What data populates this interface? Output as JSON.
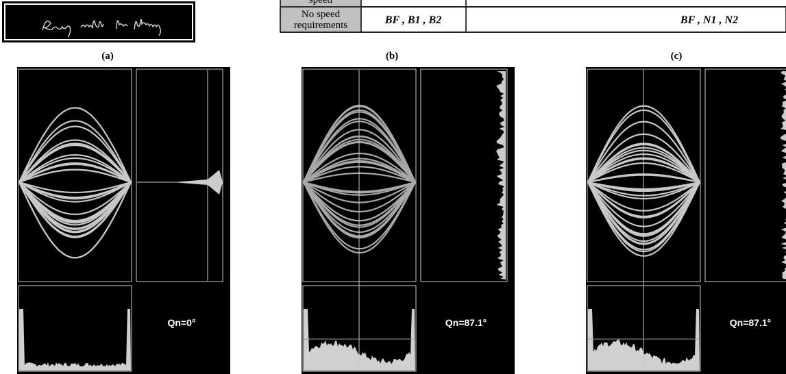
{
  "table": {
    "rows": [
      [
        "speed"
      ],
      [
        "No speed requirements",
        "BF , B1 , B2",
        "BF , N1 , N2"
      ]
    ]
  },
  "panels": [
    {
      "label": "(a)",
      "annotation": "Qn=0°"
    },
    {
      "label": "(b)",
      "annotation": "Qn=87.1°"
    },
    {
      "label": "(c)",
      "annotation": "Qn=87.1°"
    }
  ]
}
